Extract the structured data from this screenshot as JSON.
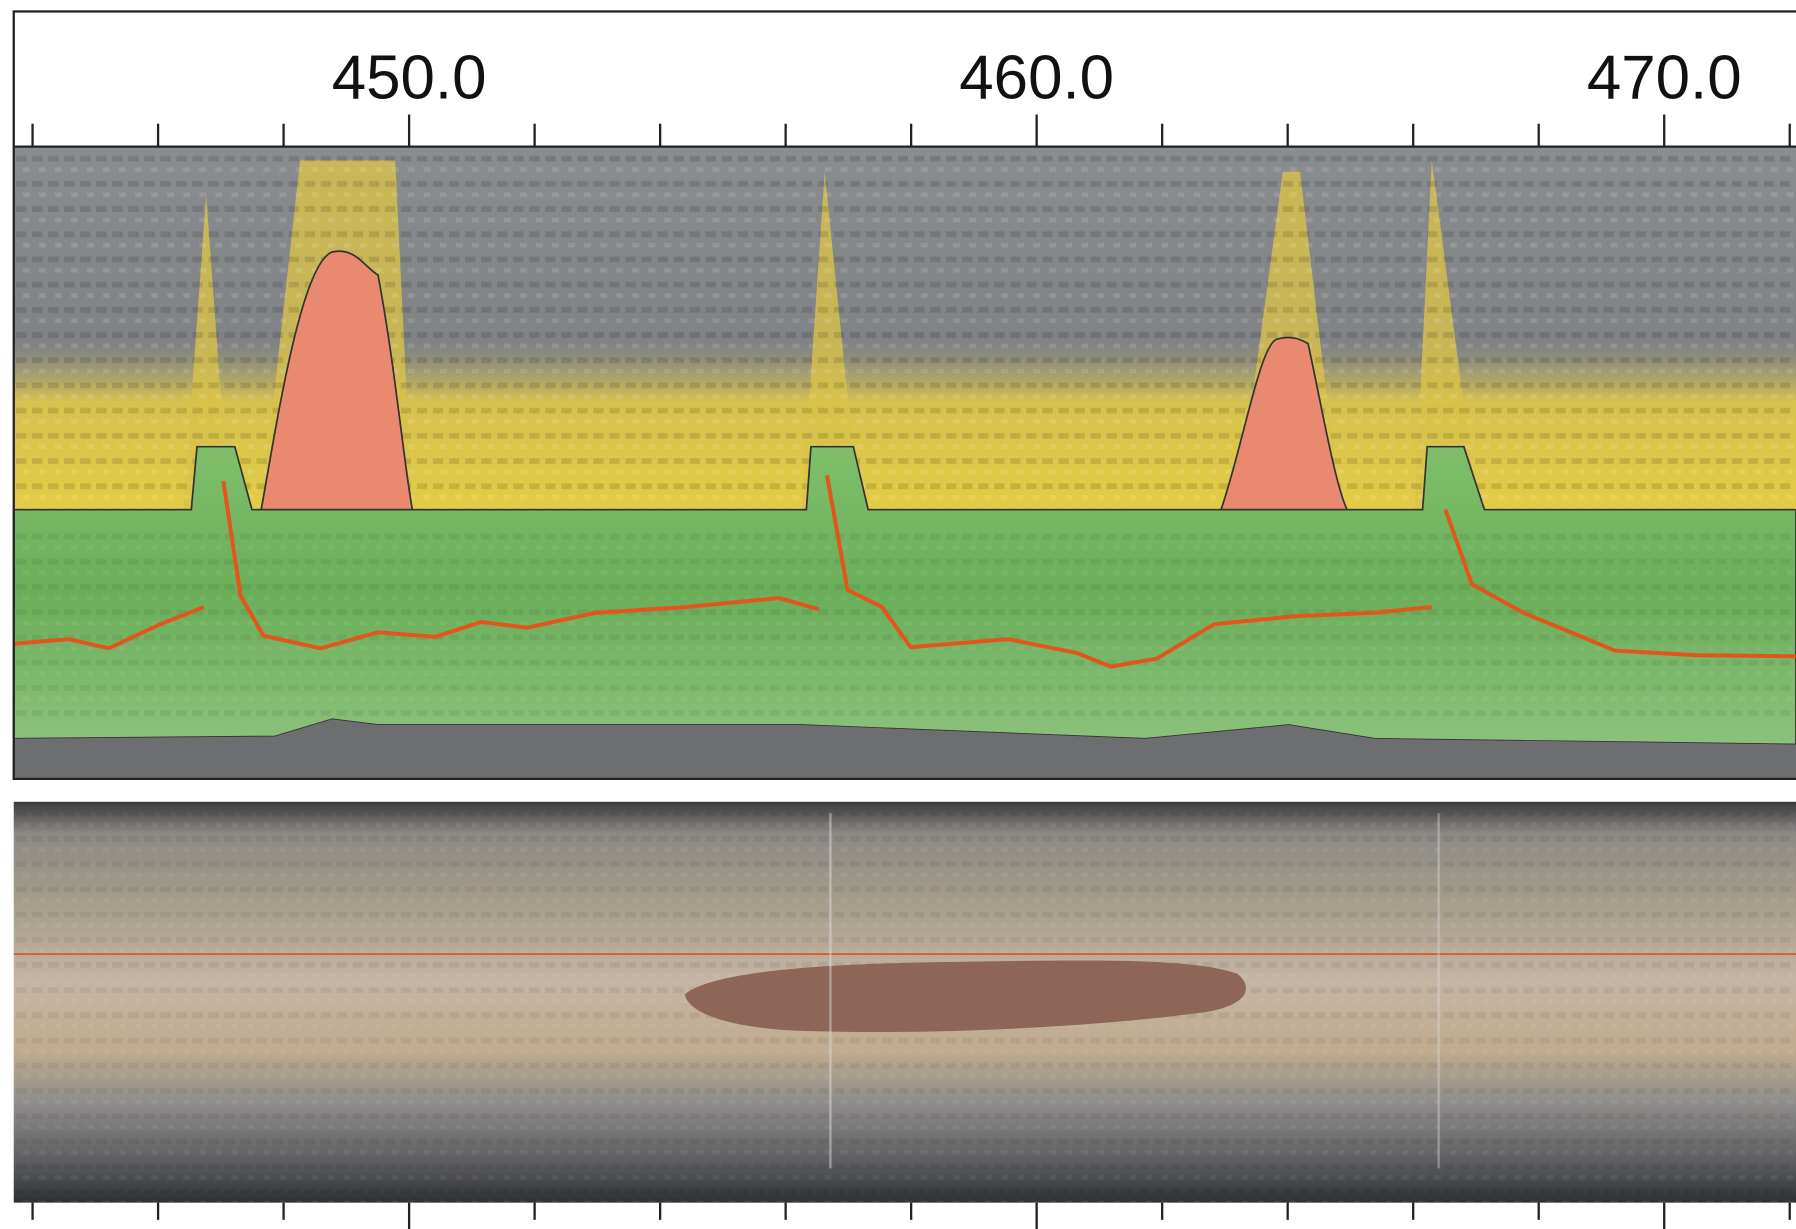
{
  "chart_data": {
    "type": "strip",
    "xlim": [
      443.7,
      472.1
    ],
    "xticks": [
      {
        "value": 450,
        "label": "450.0"
      },
      {
        "value": 460,
        "label": "460.0"
      },
      {
        "value": 470,
        "label": "470.0"
      }
    ],
    "xticks_minor": [
      444,
      446,
      448,
      452,
      454,
      456,
      458,
      462,
      464,
      466,
      468,
      472
    ]
  }
}
